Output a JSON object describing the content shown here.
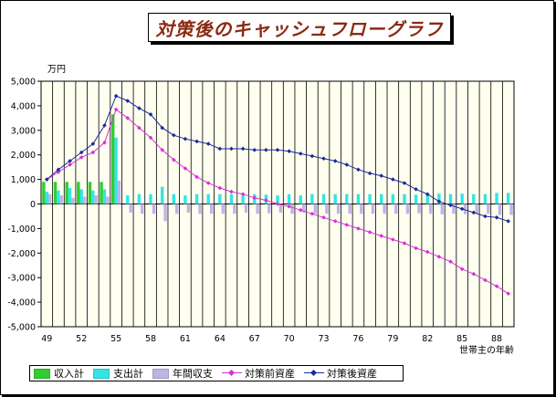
{
  "title": "対策後のキャッシュフローグラフ",
  "colors": {
    "income": "#33cc33",
    "expense": "#33e5e5",
    "annual": "#c0b4e6",
    "before": "#d630d6",
    "after": "#1a2a9a",
    "plot_bg": "#fffff0"
  },
  "chart_data": {
    "type": "bar",
    "unit_label": "万円",
    "xlabel": "世帯主の年齢",
    "ylim": [
      -5000,
      5000
    ],
    "y_ticks": [
      "5,000",
      "4,000",
      "3,000",
      "2,000",
      "1,000",
      "0",
      "-1,000",
      "-2,000",
      "-3,000",
      "-4,000",
      "-5,000"
    ],
    "x": [
      49,
      50,
      51,
      52,
      53,
      54,
      55,
      56,
      57,
      58,
      59,
      60,
      61,
      62,
      63,
      64,
      65,
      66,
      67,
      68,
      69,
      70,
      71,
      72,
      73,
      74,
      75,
      76,
      77,
      78,
      79,
      80,
      81,
      82,
      83,
      84,
      85,
      86,
      87,
      88,
      89
    ],
    "x_tick_labels": [
      "49",
      "52",
      "55",
      "58",
      "61",
      "64",
      "67",
      "70",
      "73",
      "76",
      "79",
      "82",
      "85",
      "88"
    ],
    "series": [
      {
        "name": "収入計",
        "type": "bar",
        "values": [
          900,
          900,
          900,
          900,
          900,
          900,
          3650,
          0,
          0,
          0,
          0,
          0,
          0,
          0,
          0,
          0,
          0,
          0,
          0,
          0,
          0,
          0,
          0,
          0,
          0,
          0,
          0,
          0,
          0,
          0,
          0,
          0,
          0,
          0,
          0,
          0,
          0,
          0,
          0,
          0,
          0
        ]
      },
      {
        "name": "支出計",
        "type": "bar",
        "values": [
          500,
          550,
          650,
          600,
          550,
          600,
          2700,
          350,
          400,
          400,
          700,
          400,
          350,
          400,
          400,
          400,
          400,
          350,
          400,
          380,
          350,
          400,
          350,
          400,
          400,
          400,
          400,
          400,
          400,
          400,
          400,
          400,
          380,
          400,
          420,
          400,
          420,
          400,
          400,
          450,
          450
        ]
      },
      {
        "name": "年間収支",
        "type": "bar",
        "values": [
          400,
          350,
          250,
          300,
          350,
          300,
          950,
          -350,
          -400,
          -400,
          -700,
          -400,
          -350,
          -400,
          -400,
          -400,
          -400,
          -350,
          -400,
          -380,
          -350,
          -400,
          -350,
          -400,
          -400,
          -400,
          -400,
          -400,
          -400,
          -400,
          -400,
          -400,
          -380,
          -400,
          -420,
          -400,
          -420,
          -400,
          -400,
          -450,
          -450
        ]
      },
      {
        "name": "対策前資産",
        "type": "line",
        "values": [
          1000,
          1300,
          1600,
          1900,
          2100,
          2500,
          3850,
          3500,
          3100,
          2700,
          2200,
          1800,
          1450,
          1100,
          850,
          650,
          500,
          400,
          250,
          150,
          0,
          -100,
          -250,
          -400,
          -550,
          -700,
          -850,
          -1000,
          -1150,
          -1300,
          -1450,
          -1600,
          -1800,
          -1950,
          -2150,
          -2350,
          -2650,
          -2850,
          -3100,
          -3350,
          -3650
        ]
      },
      {
        "name": "対策後資産",
        "type": "line",
        "values": [
          1000,
          1400,
          1750,
          2100,
          2450,
          3200,
          4400,
          4200,
          3900,
          3650,
          3100,
          2800,
          2650,
          2550,
          2450,
          2250,
          2250,
          2250,
          2200,
          2200,
          2200,
          2150,
          2050,
          1950,
          1850,
          1750,
          1600,
          1400,
          1250,
          1150,
          1000,
          850,
          600,
          400,
          100,
          -50,
          -200,
          -350,
          -500,
          -550,
          -700
        ]
      }
    ]
  }
}
